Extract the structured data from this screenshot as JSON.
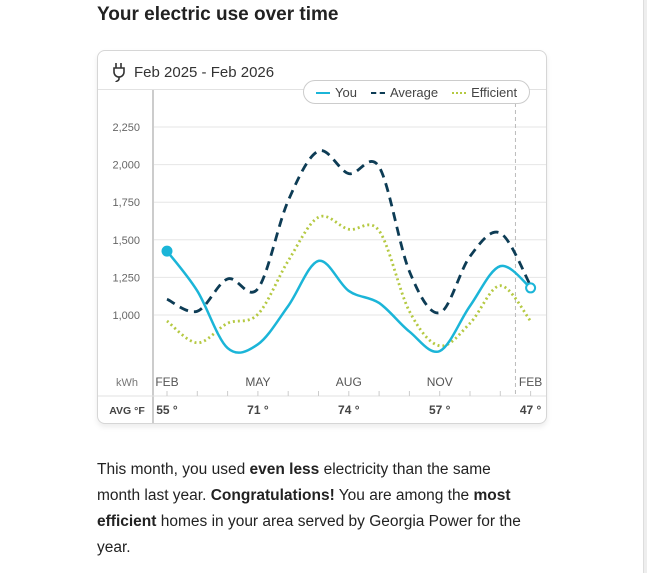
{
  "heading": "Your electric use over time",
  "card": {
    "period": "Feb 2025 - Feb 2026",
    "icon": "plug-icon"
  },
  "legend": [
    {
      "label": "You",
      "color": "#1bb5d8"
    },
    {
      "label": "Average",
      "color": "#0d3c55"
    },
    {
      "label": "Efficient",
      "color": "#b5c942"
    }
  ],
  "chart_data": {
    "type": "line",
    "ylabel": "kWh",
    "ylim": [
      1000,
      2250
    ],
    "yticks": [
      1000,
      1250,
      1500,
      1750,
      2000,
      2250
    ],
    "ytick_labels": [
      "1,000",
      "1,250",
      "1,500",
      "1,750",
      "2,000",
      "2,250"
    ],
    "x": [
      "Feb",
      "Mar",
      "Apr",
      "May",
      "Jun",
      "Jul",
      "Aug",
      "Sep",
      "Oct",
      "Nov",
      "Dec",
      "Jan",
      "Feb"
    ],
    "xtick_labels": [
      {
        "label": "FEB",
        "index": 0
      },
      {
        "label": "MAY",
        "index": 3
      },
      {
        "label": "AUG",
        "index": 6
      },
      {
        "label": "NOV",
        "index": 9
      },
      {
        "label": "FEB",
        "index": 12
      }
    ],
    "series": [
      {
        "name": "You",
        "values": [
          1425,
          1160,
          780,
          805,
          1060,
          1360,
          1160,
          1080,
          890,
          760,
          1060,
          1325,
          1180
        ]
      },
      {
        "name": "Average",
        "values": [
          1105,
          1025,
          1240,
          1175,
          1760,
          2090,
          1940,
          1985,
          1290,
          1015,
          1390,
          1545,
          1195
        ]
      },
      {
        "name": "Efficient",
        "values": [
          960,
          815,
          945,
          1005,
          1360,
          1650,
          1570,
          1560,
          1025,
          795,
          945,
          1195,
          960
        ]
      }
    ],
    "current_marker_index": 11.5,
    "temps_label": "AVG °F",
    "temps": [
      {
        "label": "55",
        "index": 0
      },
      {
        "label": "71",
        "index": 3
      },
      {
        "label": "74",
        "index": 6
      },
      {
        "label": "57",
        "index": 9
      },
      {
        "label": "47",
        "index": 12
      }
    ]
  },
  "body": {
    "p1": "This month, you used ",
    "b1": "even less",
    "p2": " electricity than the same month last year. ",
    "b2": "Congratulations!",
    "p3": " You are among the ",
    "b3": "most efficient",
    "p4": " homes in your area served by Georgia Power for the year."
  }
}
